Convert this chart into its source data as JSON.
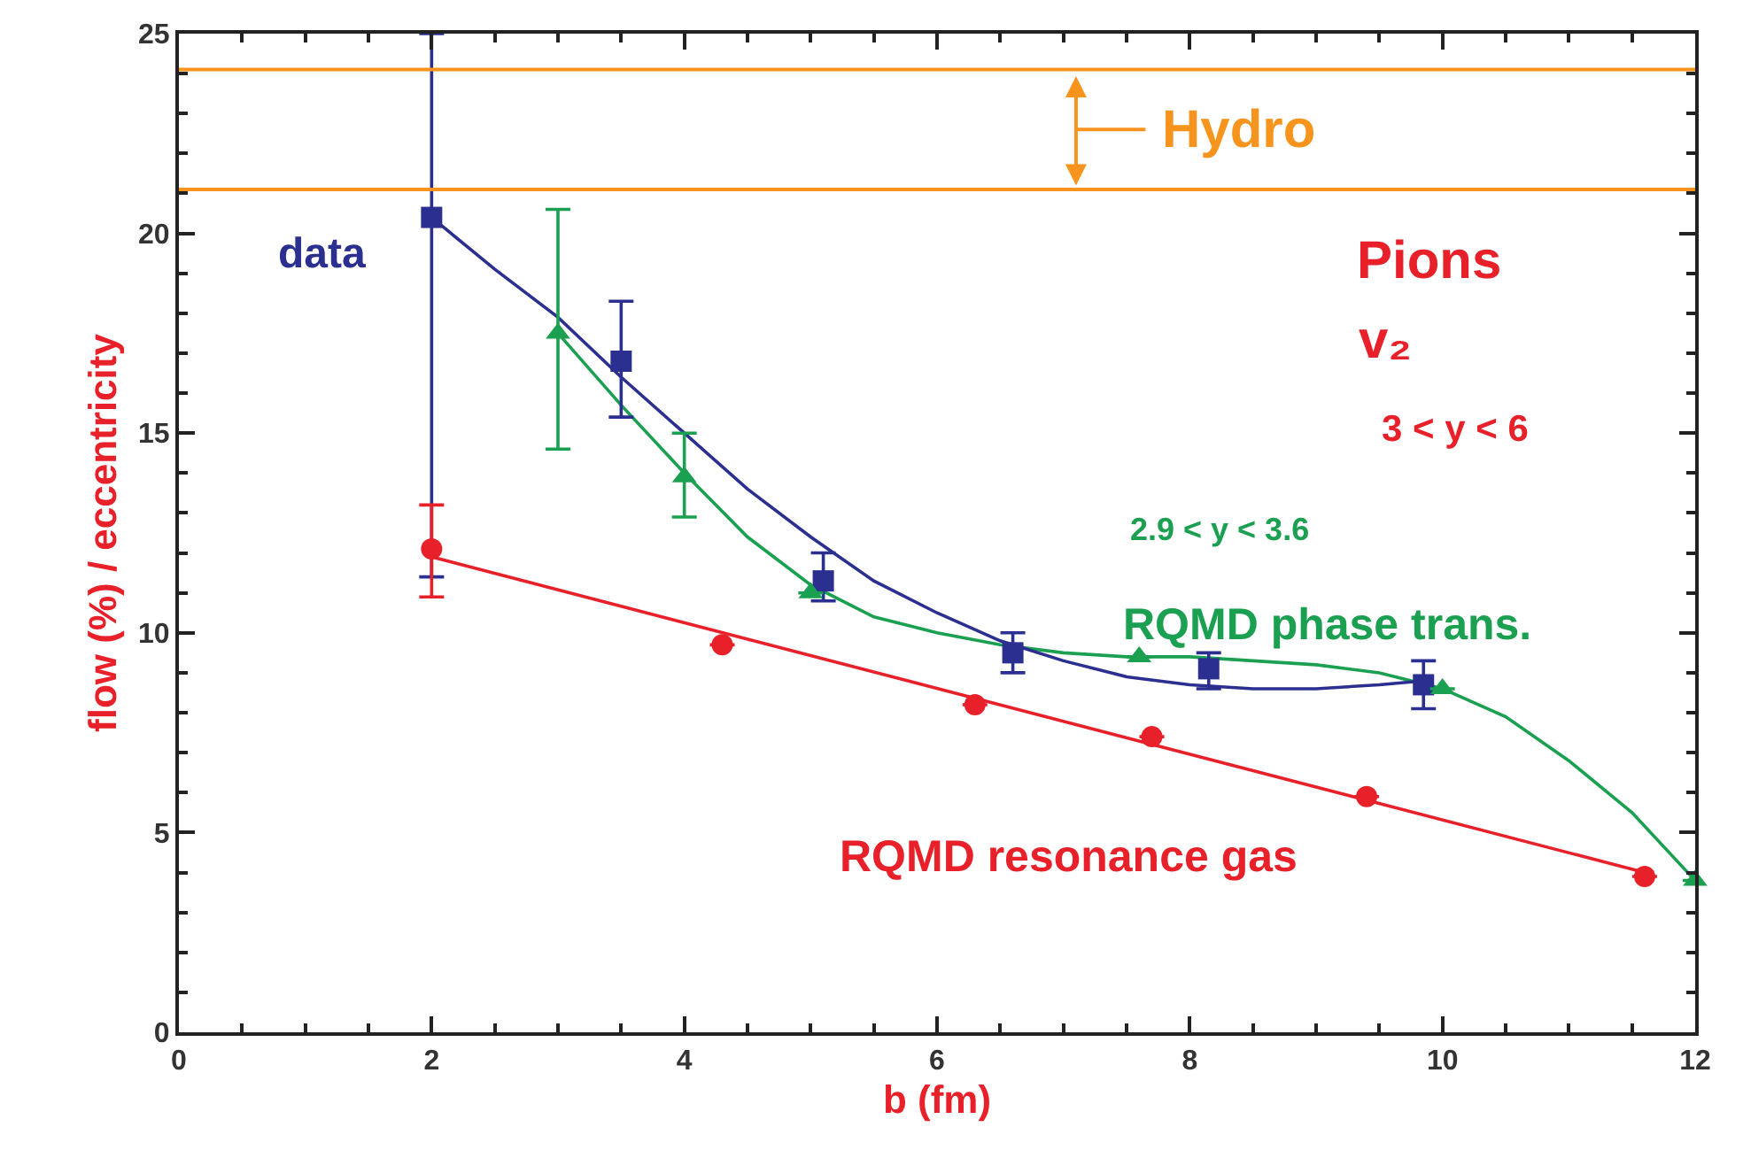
{
  "chart_data": {
    "type": "scatter",
    "xlabel": "b (fm)",
    "ylabel": "flow (%) / eccentricity",
    "xlim": [
      0,
      12
    ],
    "xticks": [
      0,
      2,
      4,
      6,
      8,
      10,
      12
    ],
    "ylim": [
      0,
      25
    ],
    "yticks": [
      0,
      5,
      10,
      15,
      20,
      25
    ],
    "grid": false,
    "legend": false,
    "line_style": "solid",
    "series": [
      {
        "name": "data",
        "color": "#2b2f8f",
        "marker": "square",
        "x": [
          2,
          3.5,
          5.1,
          6.6,
          8.15,
          9.85
        ],
        "values": [
          20.4,
          16.8,
          11.3,
          9.5,
          9.1,
          8.7
        ],
        "errors": [
          [
            11.4,
            25
          ],
          [
            15.4,
            18.3
          ],
          [
            10.8,
            12.0
          ],
          [
            9.0,
            10.0
          ],
          [
            8.6,
            9.5
          ],
          [
            8.1,
            9.3
          ]
        ]
      },
      {
        "name": "RQMD phase trans.",
        "color": "#1aa050",
        "marker": "triangle",
        "x": [
          3,
          4,
          5,
          7.6,
          10,
          12
        ],
        "values": [
          17.5,
          13.9,
          11.0,
          9.4,
          8.6,
          3.8
        ],
        "errors": [
          [
            14.6,
            20.6
          ],
          [
            12.9,
            15.0
          ],
          null,
          null,
          null,
          null
        ]
      },
      {
        "name": "RQMD resonance gas",
        "color": "#e8202a",
        "marker": "circle",
        "x": [
          2,
          4.3,
          6.3,
          7.7,
          9.4,
          11.6
        ],
        "values": [
          12.1,
          9.7,
          8.2,
          7.4,
          5.9,
          3.9
        ],
        "errors": [
          [
            10.9,
            13.2
          ],
          null,
          null,
          null,
          null,
          null
        ]
      },
      {
        "type": "line",
        "color": "#2b2f8f",
        "x": [
          2,
          2.5,
          3,
          3.5,
          4,
          4.5,
          5,
          5.5,
          6,
          6.5,
          7,
          7.5,
          8,
          8.5,
          9,
          9.5,
          9.85
        ],
        "values": [
          20.4,
          19.1,
          17.9,
          16.4,
          15.0,
          13.6,
          12.4,
          11.3,
          10.5,
          9.8,
          9.3,
          8.9,
          8.7,
          8.6,
          8.6,
          8.7,
          8.8
        ]
      },
      {
        "type": "line",
        "color": "#1aa050",
        "x": [
          3,
          3.5,
          4,
          4.5,
          5,
          5.5,
          6,
          6.5,
          7,
          7.5,
          8,
          8.5,
          9,
          9.5,
          10,
          10.5,
          11,
          11.5,
          12
        ],
        "values": [
          17.5,
          15.7,
          14.0,
          12.4,
          11.2,
          10.4,
          10.0,
          9.7,
          9.5,
          9.4,
          9.4,
          9.3,
          9.2,
          9.0,
          8.6,
          7.9,
          6.8,
          5.5,
          3.8
        ]
      },
      {
        "type": "line",
        "color": "#e8202a",
        "x": [
          2,
          11.6
        ],
        "values": [
          11.9,
          4.0
        ]
      }
    ],
    "ref_lines": [
      {
        "axis": "y",
        "value": 21.1,
        "color": "#f7941d"
      },
      {
        "axis": "y",
        "value": 24.1,
        "color": "#f7941d"
      }
    ],
    "annotations": [
      "Hydro",
      "Pions",
      "v₂",
      "3 < y < 6",
      "2.9 < y < 3.6"
    ]
  }
}
